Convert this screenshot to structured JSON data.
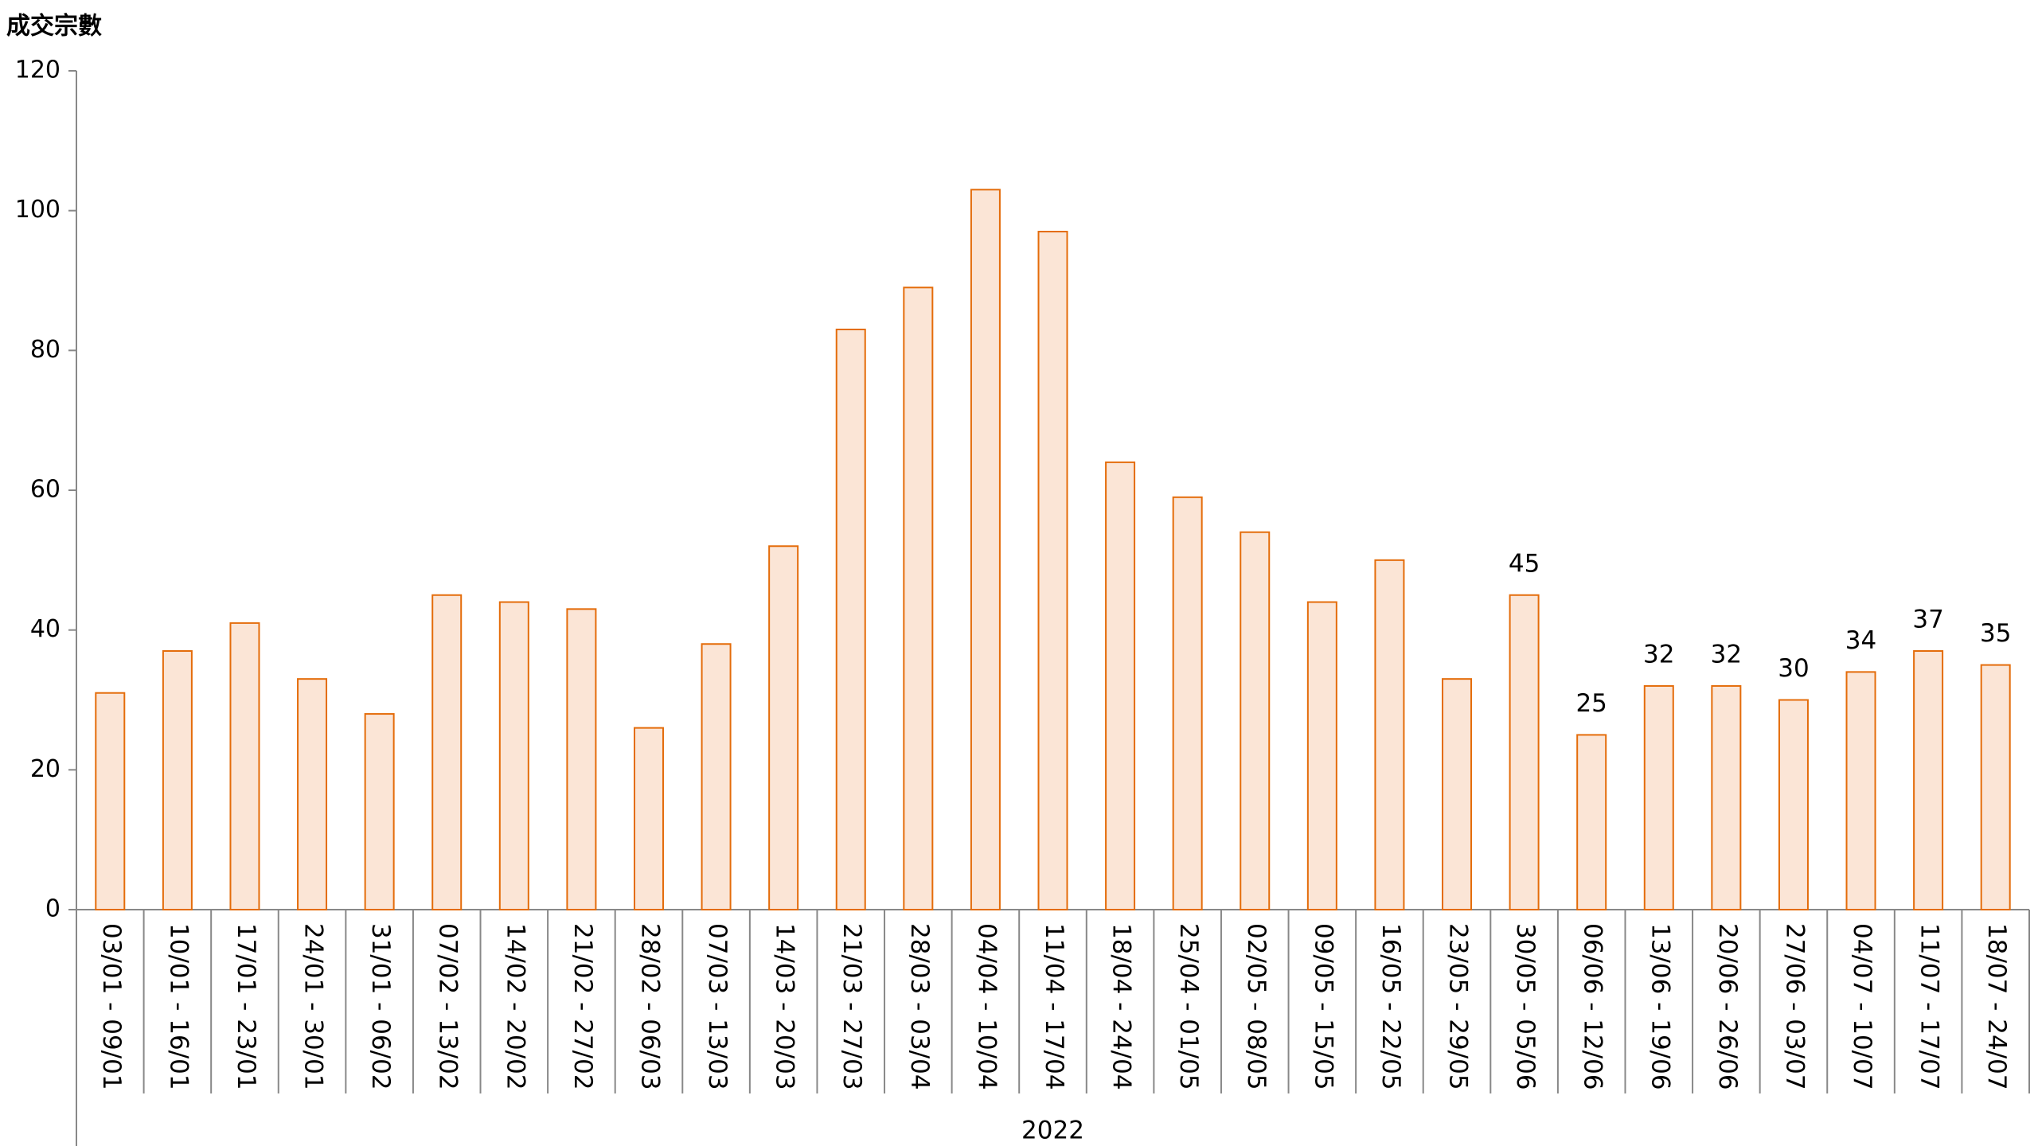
{
  "chart_data": {
    "type": "bar",
    "y_axis_label": "成交宗數",
    "x_group_label": "2022",
    "categories": [
      "03/01 - 09/01",
      "10/01 - 16/01",
      "17/01 - 23/01",
      "24/01 - 30/01",
      "31/01 - 06/02",
      "07/02 - 13/02",
      "14/02 - 20/02",
      "21/02 - 27/02",
      "28/02 - 06/03",
      "07/03 - 13/03",
      "14/03 - 20/03",
      "21/03 - 27/03",
      "28/03 - 03/04",
      "04/04 - 10/04",
      "11/04 - 17/04",
      "18/04 - 24/04",
      "25/04 - 01/05",
      "02/05 - 08/05",
      "09/05 - 15/05",
      "16/05 - 22/05",
      "23/05 - 29/05",
      "30/05 - 05/06",
      "06/06 - 12/06",
      "13/06 - 19/06",
      "20/06 - 26/06",
      "27/06 - 03/07",
      "04/07 - 10/07",
      "11/07 - 17/07",
      "18/07 - 24/07"
    ],
    "values": [
      31,
      37,
      41,
      33,
      28,
      45,
      44,
      43,
      26,
      38,
      52,
      83,
      89,
      103,
      97,
      64,
      59,
      54,
      44,
      50,
      33,
      45,
      25,
      32,
      32,
      30,
      34,
      37,
      35
    ],
    "value_labels": [
      null,
      null,
      null,
      null,
      null,
      null,
      null,
      null,
      null,
      null,
      null,
      null,
      null,
      null,
      null,
      null,
      null,
      null,
      null,
      null,
      null,
      "45",
      "25",
      "32",
      "32",
      "30",
      "34",
      "37",
      "35"
    ],
    "color": "#fbe5d6",
    "edge_color": "#e46c0a",
    "ylim": [
      0,
      120
    ],
    "yticks": [
      0,
      20,
      40,
      60,
      80,
      100,
      120
    ],
    "grid": false
  }
}
